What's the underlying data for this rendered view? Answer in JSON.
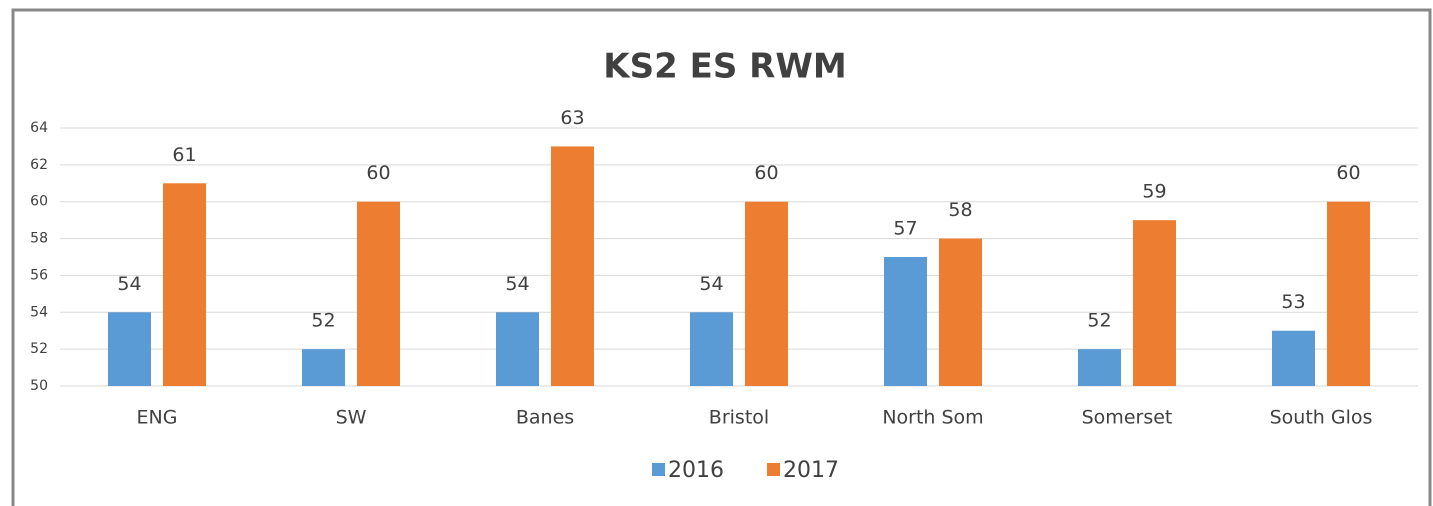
{
  "chart_data": {
    "type": "bar",
    "title": "KS2 ES RWM",
    "categories": [
      "ENG",
      "SW",
      "Banes",
      "Bristol",
      "North Som",
      "Somerset",
      "South Glos"
    ],
    "series": [
      {
        "name": "2016",
        "color": "#5b9bd5",
        "values": [
          54,
          52,
          54,
          54,
          57,
          52,
          53
        ]
      },
      {
        "name": "2017",
        "color": "#ed7d31",
        "values": [
          61,
          60,
          63,
          60,
          58,
          59,
          60
        ]
      }
    ],
    "ylim": [
      50,
      64
    ],
    "yticks": [
      50,
      52,
      54,
      56,
      58,
      60,
      62,
      64
    ],
    "grid": true,
    "legend": "bottom"
  }
}
